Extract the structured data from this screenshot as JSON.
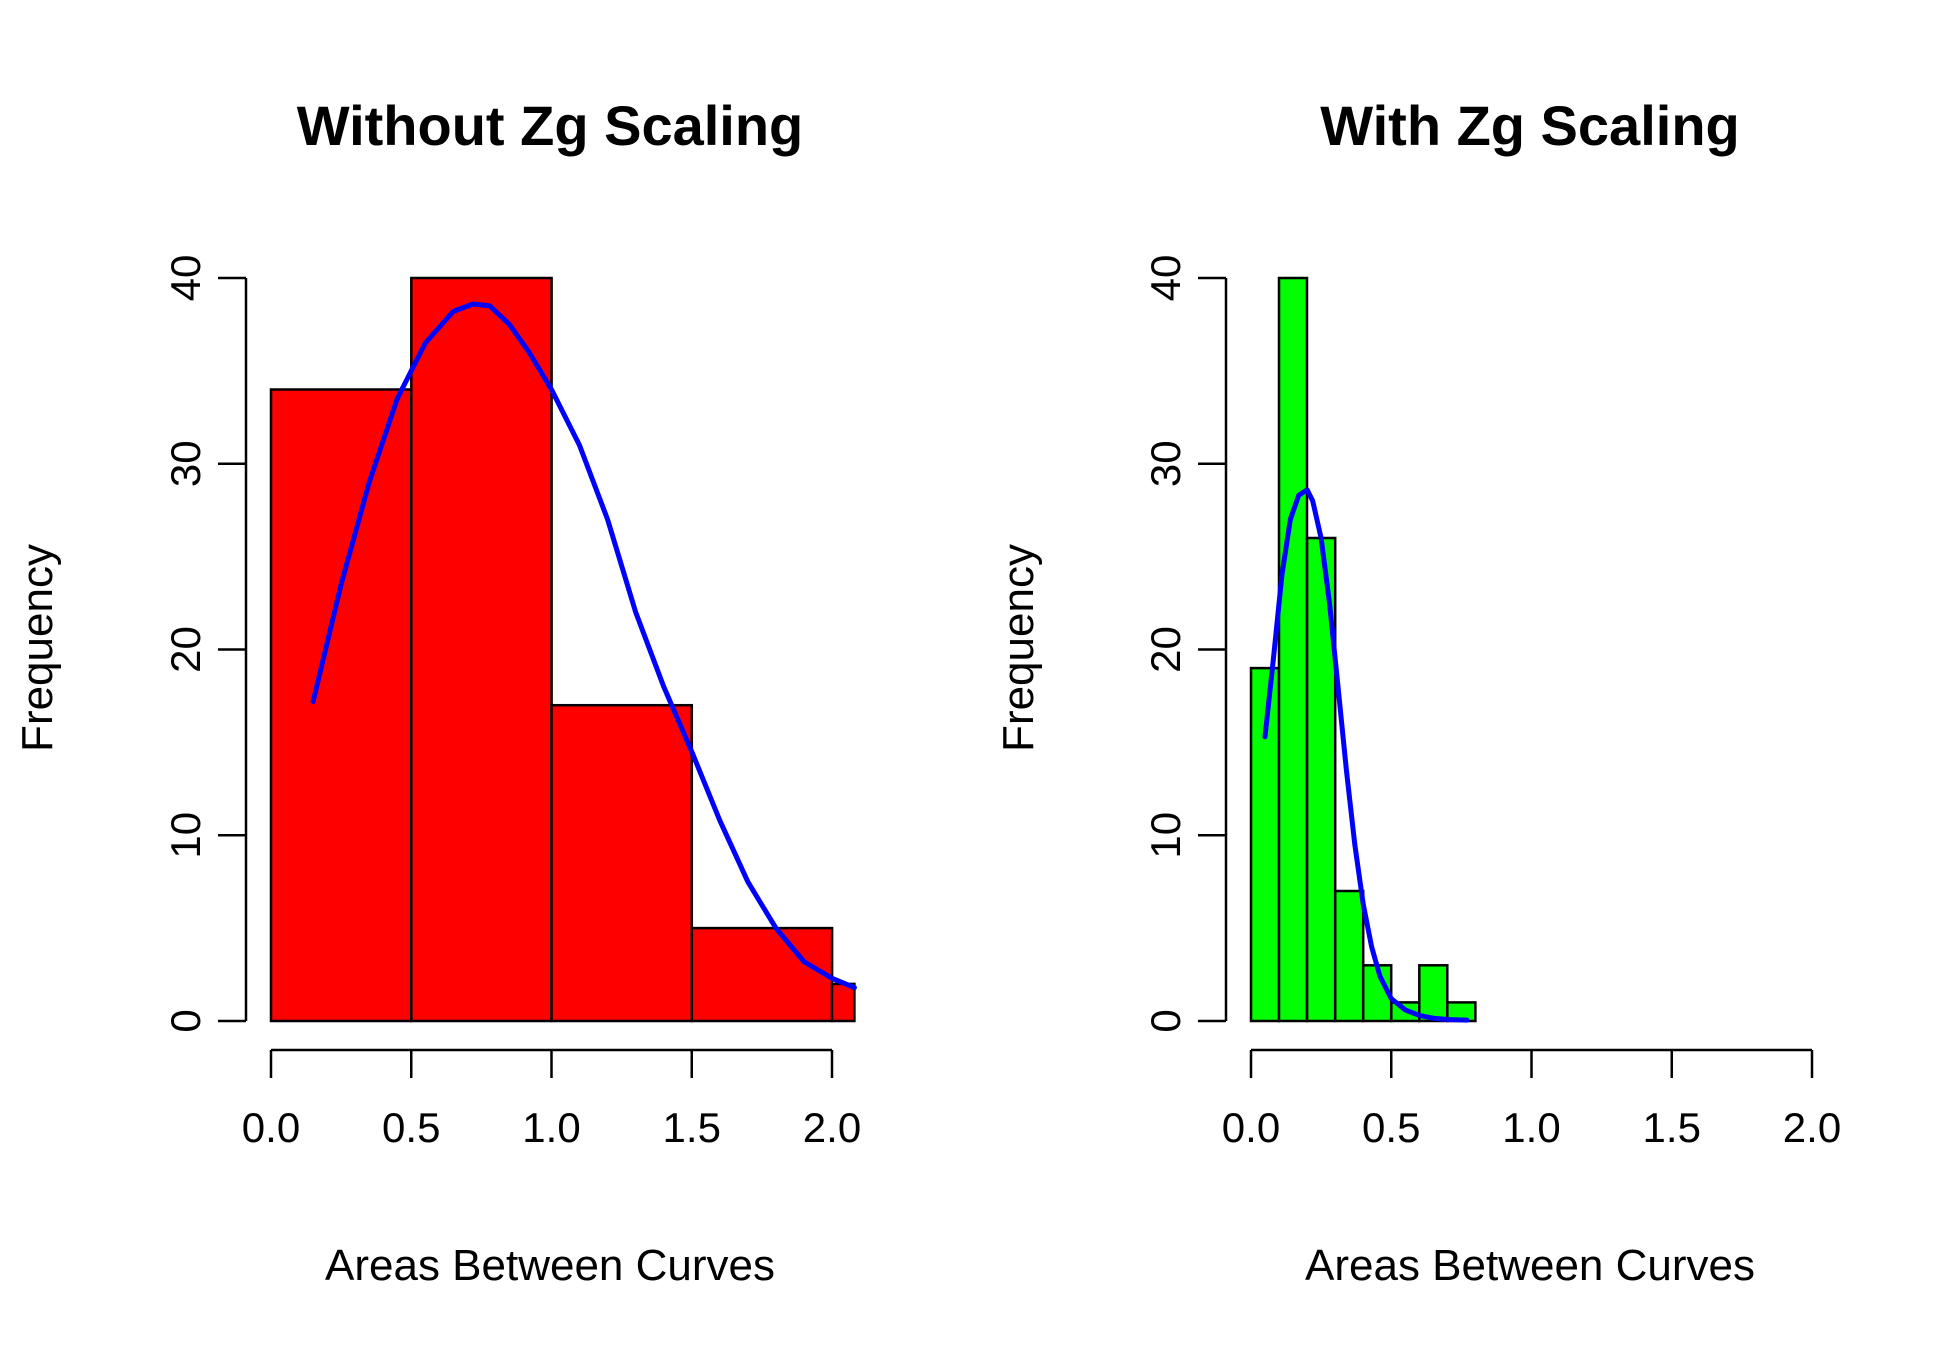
{
  "colors": {
    "bar_left": "#ff0000",
    "bar_right": "#00ff00",
    "curve": "#0000ff"
  },
  "chart_data": [
    {
      "type": "bar",
      "subtype": "histogram",
      "title": "Without Zg Scaling",
      "xlabel": "Areas Between Curves",
      "ylabel": "Frequency",
      "xlim": [
        0,
        2.0
      ],
      "ylim": [
        0,
        40
      ],
      "xticks": [
        "0.0",
        "0.5",
        "1.0",
        "1.5",
        "2.0"
      ],
      "yticks": [
        "0",
        "10",
        "20",
        "30",
        "40"
      ],
      "bars": [
        {
          "x0": 0.0,
          "x1": 0.5,
          "count": 34
        },
        {
          "x0": 0.5,
          "x1": 1.0,
          "count": 40
        },
        {
          "x0": 1.0,
          "x1": 1.5,
          "count": 17
        },
        {
          "x0": 1.5,
          "x1": 2.0,
          "count": 5
        },
        {
          "x0": 2.0,
          "x1": 2.08,
          "count": 2
        }
      ],
      "curve": {
        "x": [
          0.15,
          0.25,
          0.35,
          0.45,
          0.55,
          0.65,
          0.72,
          0.78,
          0.85,
          0.92,
          1.0,
          1.1,
          1.2,
          1.3,
          1.4,
          1.5,
          1.6,
          1.7,
          1.8,
          1.9,
          2.0,
          2.08
        ],
        "y": [
          17.2,
          23.5,
          29.0,
          33.5,
          36.5,
          38.2,
          38.6,
          38.5,
          37.5,
          36.0,
          34.0,
          31.0,
          27.0,
          22.0,
          18.0,
          14.5,
          10.8,
          7.5,
          5.0,
          3.2,
          2.3,
          1.8
        ]
      }
    },
    {
      "type": "bar",
      "subtype": "histogram",
      "title": "With Zg Scaling",
      "xlabel": "Areas Between Curves",
      "ylabel": "Frequency",
      "xlim": [
        0,
        2.0
      ],
      "ylim": [
        0,
        40
      ],
      "xticks": [
        "0.0",
        "0.5",
        "1.0",
        "1.5",
        "2.0"
      ],
      "yticks": [
        "0",
        "10",
        "20",
        "30",
        "40"
      ],
      "bars": [
        {
          "x0": 0.0,
          "x1": 0.1,
          "count": 19
        },
        {
          "x0": 0.1,
          "x1": 0.2,
          "count": 40
        },
        {
          "x0": 0.2,
          "x1": 0.3,
          "count": 26
        },
        {
          "x0": 0.3,
          "x1": 0.4,
          "count": 7
        },
        {
          "x0": 0.4,
          "x1": 0.5,
          "count": 3
        },
        {
          "x0": 0.5,
          "x1": 0.6,
          "count": 1
        },
        {
          "x0": 0.6,
          "x1": 0.7,
          "count": 3
        },
        {
          "x0": 0.7,
          "x1": 0.8,
          "count": 1
        }
      ],
      "curve": {
        "x": [
          0.05,
          0.08,
          0.11,
          0.14,
          0.17,
          0.2,
          0.22,
          0.25,
          0.28,
          0.31,
          0.34,
          0.37,
          0.4,
          0.43,
          0.46,
          0.5,
          0.55,
          0.6,
          0.65,
          0.7,
          0.77
        ],
        "y": [
          15.3,
          19.5,
          24.0,
          27.0,
          28.3,
          28.6,
          28.0,
          26.0,
          22.5,
          18.0,
          13.5,
          9.5,
          6.3,
          4.0,
          2.4,
          1.2,
          0.6,
          0.3,
          0.15,
          0.08,
          0.05
        ]
      }
    }
  ]
}
